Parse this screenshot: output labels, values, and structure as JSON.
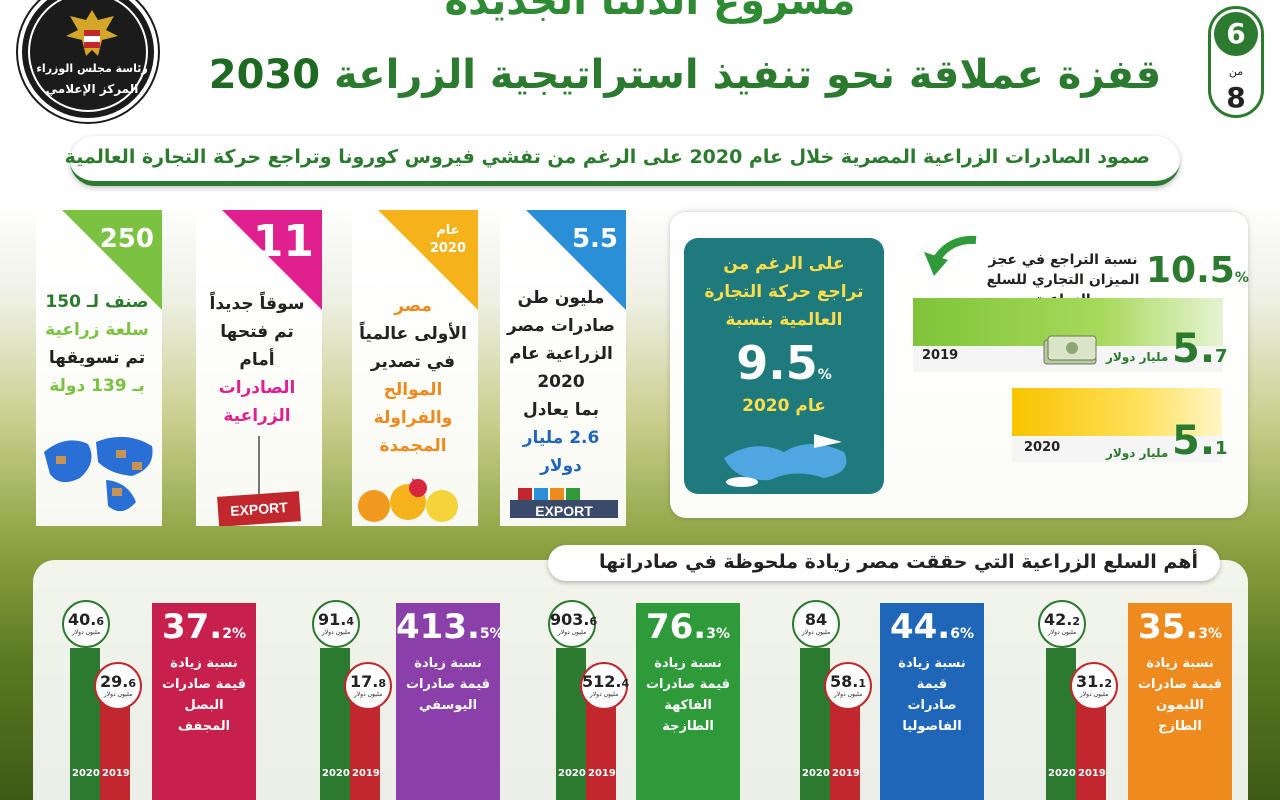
{
  "header": {
    "title1": "مشروع الدلتا الجديدة",
    "title2": "قفزة عملاقة نحو تنفيذ استراتيجية الزراعة",
    "title2_year": "2030",
    "logo_line1": "رئاسة مجلس الوزراء",
    "logo_line2": "المركز الإعلامي",
    "page_current": "6",
    "page_of": "من",
    "page_total": "8"
  },
  "banner": "صمود الصادرات الزراعية المصرية خلال عام 2020 على الرغم من تفشي فيروس كورونا وتراجع حركة التجارة العالمية",
  "cards": [
    {
      "num": "5.5",
      "lines": [
        "مليون طن",
        "صادرات مصر",
        "الزراعية عام",
        "2020",
        "بما يعادل",
        "2.6 مليار دولار"
      ]
    },
    {
      "num_small1": "عام",
      "num_small2": "2020",
      "lines": [
        "مصر",
        "الأولى عالمياً",
        "في تصدير",
        "الموالح",
        "والفراولة",
        "المجمدة"
      ]
    },
    {
      "num": "11",
      "lines": [
        "سوقاً جديداً",
        "تم فتحها",
        "أمام",
        "الصادرات",
        "الزراعية"
      ],
      "export_label": "EXPORT"
    },
    {
      "num": "250",
      "lines": [
        "صنف لـ 150",
        "سلعة زراعية",
        "تم تسويقها",
        "بـ 139 دولة"
      ]
    }
  ],
  "trade": {
    "text": [
      "على الرغم من",
      "تراجع حركة التجارة",
      "العالمية بنسبة"
    ],
    "pct": "9.5",
    "pct_sign": "%",
    "year": "عام 2020"
  },
  "decline": {
    "pct": "10.5",
    "pct_sign": "%",
    "text1": "نسبة التراجع في عجز",
    "text2": "الميزان التجاري للسلع الزراعية"
  },
  "balance": [
    {
      "year": "2019",
      "val_main": "5.",
      "val_dec": "7",
      "unit": "مليار دولار"
    },
    {
      "year": "2020",
      "val_main": "5.",
      "val_dec": "1",
      "unit": "مليار دولار"
    }
  ],
  "bottom_title": "أهم السلع الزراعية التي حققت مصر زيادة ملحوظة في صادراتها",
  "products": [
    {
      "pct": "35.",
      "dec": "3",
      "desc": [
        "نسبة زيادة",
        "قيمة صادرات",
        "الليمون",
        "الطازج"
      ],
      "v2020": "42.",
      "v2020d": "2",
      "v2019": "31.",
      "v2019d": "2",
      "color": "#ef8a1f"
    },
    {
      "pct": "44.",
      "dec": "6",
      "desc": [
        "نسبة زيادة",
        "قيمة",
        "صادرات",
        "الفاصوليا"
      ],
      "v2020": "84",
      "v2020d": "",
      "v2019": "58.",
      "v2019d": "1",
      "color": "#1f66b8"
    },
    {
      "pct": "76.",
      "dec": "3",
      "desc": [
        "نسبة زيادة",
        "قيمة صادرات",
        "الفاكهة",
        "الطازجة"
      ],
      "v2020": "903.",
      "v2020d": "6",
      "v2019": "512.",
      "v2019d": "4",
      "color": "#2e9a3a"
    },
    {
      "pct": "413.",
      "dec": "5",
      "desc": [
        "نسبة زيادة",
        "قيمة صادرات",
        "اليوسفي"
      ],
      "v2020": "91.",
      "v2020d": "4",
      "v2019": "17.",
      "v2019d": "8",
      "color": "#8b3fa8"
    },
    {
      "pct": "37.",
      "dec": "2",
      "desc": [
        "نسبة زيادة",
        "قيمة صادرات",
        "البصل",
        "المجفف"
      ],
      "v2020": "40.",
      "v2020d": "6",
      "v2019": "29.",
      "v2019d": "6",
      "color": "#c8204d"
    }
  ],
  "unit_small": "مليون دولار",
  "year_2020": "2020",
  "year_2019": "2019",
  "colors": {
    "green": "#2b7a2f",
    "red": "#c0282d",
    "teal": "#1f7a7d"
  }
}
